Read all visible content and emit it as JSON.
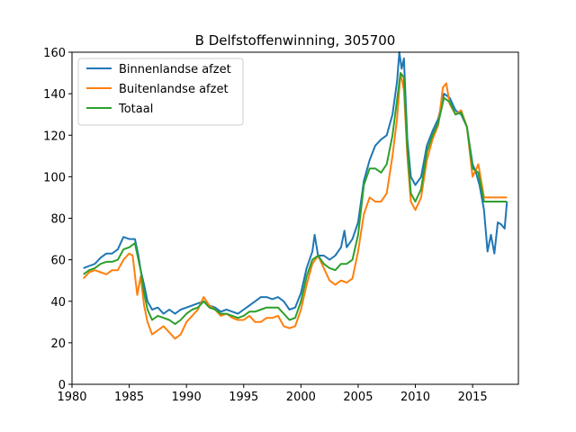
{
  "chart_data": {
    "type": "line",
    "title": "B Delfstoffenwinning, 305700",
    "xlabel": "",
    "ylabel": "",
    "xlim": [
      1980,
      2019
    ],
    "ylim": [
      0,
      160
    ],
    "xticks": [
      1980,
      1985,
      1990,
      1995,
      2000,
      2005,
      2010,
      2015
    ],
    "yticks": [
      0,
      20,
      40,
      60,
      80,
      100,
      120,
      140,
      160
    ],
    "grid": false,
    "legend_position": "top-left",
    "series": [
      {
        "name": "Binnenlandse afzet",
        "color": "#1f77b4",
        "points": [
          [
            1981.0,
            56
          ],
          [
            1981.5,
            57
          ],
          [
            1982.0,
            58
          ],
          [
            1982.5,
            61
          ],
          [
            1983.0,
            63
          ],
          [
            1983.5,
            63
          ],
          [
            1984.0,
            65
          ],
          [
            1984.5,
            71
          ],
          [
            1985.0,
            70
          ],
          [
            1985.5,
            70
          ],
          [
            1985.8,
            62
          ],
          [
            1986.0,
            55
          ],
          [
            1986.3,
            48
          ],
          [
            1986.6,
            40
          ],
          [
            1987.0,
            36
          ],
          [
            1987.5,
            37
          ],
          [
            1988.0,
            34
          ],
          [
            1988.5,
            36
          ],
          [
            1989.0,
            34
          ],
          [
            1989.5,
            36
          ],
          [
            1990.0,
            37
          ],
          [
            1990.5,
            38
          ],
          [
            1991.0,
            39
          ],
          [
            1991.5,
            40
          ],
          [
            1992.0,
            38
          ],
          [
            1992.5,
            37
          ],
          [
            1993.0,
            35
          ],
          [
            1993.5,
            36
          ],
          [
            1994.0,
            35
          ],
          [
            1994.5,
            34
          ],
          [
            1995.0,
            36
          ],
          [
            1995.5,
            38
          ],
          [
            1996.0,
            40
          ],
          [
            1996.5,
            42
          ],
          [
            1997.0,
            42
          ],
          [
            1997.5,
            41
          ],
          [
            1998.0,
            42
          ],
          [
            1998.5,
            40
          ],
          [
            1999.0,
            36
          ],
          [
            1999.5,
            37
          ],
          [
            2000.0,
            44
          ],
          [
            2000.5,
            56
          ],
          [
            2001.0,
            64
          ],
          [
            2001.2,
            72
          ],
          [
            2001.5,
            62
          ],
          [
            2002.0,
            62
          ],
          [
            2002.5,
            60
          ],
          [
            2003.0,
            62
          ],
          [
            2003.5,
            66
          ],
          [
            2003.8,
            74
          ],
          [
            2004.0,
            66
          ],
          [
            2004.5,
            70
          ],
          [
            2005.0,
            78
          ],
          [
            2005.5,
            98
          ],
          [
            2006.0,
            108
          ],
          [
            2006.5,
            115
          ],
          [
            2007.0,
            118
          ],
          [
            2007.5,
            120
          ],
          [
            2008.0,
            130
          ],
          [
            2008.4,
            146
          ],
          [
            2008.6,
            160
          ],
          [
            2008.8,
            152
          ],
          [
            2009.0,
            157
          ],
          [
            2009.3,
            118
          ],
          [
            2009.6,
            100
          ],
          [
            2010.0,
            96
          ],
          [
            2010.5,
            100
          ],
          [
            2011.0,
            115
          ],
          [
            2011.5,
            122
          ],
          [
            2012.0,
            128
          ],
          [
            2012.5,
            140
          ],
          [
            2013.0,
            138
          ],
          [
            2013.5,
            132
          ],
          [
            2014.0,
            130
          ],
          [
            2014.5,
            124
          ],
          [
            2015.0,
            106
          ],
          [
            2015.3,
            102
          ],
          [
            2015.6,
            96
          ],
          [
            2016.0,
            84
          ],
          [
            2016.3,
            64
          ],
          [
            2016.6,
            72
          ],
          [
            2016.9,
            63
          ],
          [
            2017.2,
            78
          ],
          [
            2017.5,
            77
          ],
          [
            2017.8,
            75
          ],
          [
            2018.0,
            88
          ]
        ]
      },
      {
        "name": "Buitenlandse afzet",
        "color": "#ff7f0e",
        "points": [
          [
            1981.0,
            51
          ],
          [
            1981.5,
            54
          ],
          [
            1982.0,
            55
          ],
          [
            1982.5,
            54
          ],
          [
            1983.0,
            53
          ],
          [
            1983.5,
            55
          ],
          [
            1984.0,
            55
          ],
          [
            1984.5,
            60
          ],
          [
            1985.0,
            63
          ],
          [
            1985.3,
            62
          ],
          [
            1985.7,
            43
          ],
          [
            1986.0,
            52
          ],
          [
            1986.3,
            38
          ],
          [
            1986.6,
            30
          ],
          [
            1987.0,
            24
          ],
          [
            1987.5,
            26
          ],
          [
            1988.0,
            28
          ],
          [
            1988.5,
            25
          ],
          [
            1989.0,
            22
          ],
          [
            1989.5,
            24
          ],
          [
            1990.0,
            30
          ],
          [
            1990.5,
            33
          ],
          [
            1991.0,
            36
          ],
          [
            1991.5,
            42
          ],
          [
            1992.0,
            38
          ],
          [
            1992.5,
            36
          ],
          [
            1993.0,
            33
          ],
          [
            1993.5,
            34
          ],
          [
            1994.0,
            32
          ],
          [
            1994.5,
            31
          ],
          [
            1995.0,
            31
          ],
          [
            1995.5,
            33
          ],
          [
            1996.0,
            30
          ],
          [
            1996.5,
            30
          ],
          [
            1997.0,
            32
          ],
          [
            1997.5,
            32
          ],
          [
            1998.0,
            33
          ],
          [
            1998.5,
            28
          ],
          [
            1999.0,
            27
          ],
          [
            1999.5,
            28
          ],
          [
            2000.0,
            36
          ],
          [
            2000.5,
            48
          ],
          [
            2001.0,
            58
          ],
          [
            2001.5,
            62
          ],
          [
            2002.0,
            56
          ],
          [
            2002.5,
            50
          ],
          [
            2003.0,
            48
          ],
          [
            2003.5,
            50
          ],
          [
            2004.0,
            49
          ],
          [
            2004.5,
            51
          ],
          [
            2005.0,
            64
          ],
          [
            2005.5,
            82
          ],
          [
            2006.0,
            90
          ],
          [
            2006.5,
            88
          ],
          [
            2007.0,
            88
          ],
          [
            2007.5,
            92
          ],
          [
            2008.0,
            110
          ],
          [
            2008.4,
            128
          ],
          [
            2008.7,
            150
          ],
          [
            2009.0,
            142
          ],
          [
            2009.3,
            110
          ],
          [
            2009.6,
            88
          ],
          [
            2010.0,
            84
          ],
          [
            2010.5,
            90
          ],
          [
            2011.0,
            108
          ],
          [
            2011.5,
            118
          ],
          [
            2012.0,
            125
          ],
          [
            2012.4,
            143
          ],
          [
            2012.7,
            145
          ],
          [
            2013.0,
            135
          ],
          [
            2013.5,
            130
          ],
          [
            2014.0,
            132
          ],
          [
            2014.5,
            124
          ],
          [
            2015.0,
            100
          ],
          [
            2015.5,
            106
          ],
          [
            2016.0,
            90
          ],
          [
            2016.5,
            90
          ],
          [
            2017.0,
            90
          ],
          [
            2017.5,
            90
          ],
          [
            2018.0,
            90
          ]
        ]
      },
      {
        "name": "Totaal",
        "color": "#2ca02c",
        "points": [
          [
            1981.0,
            53
          ],
          [
            1981.5,
            55
          ],
          [
            1982.0,
            56
          ],
          [
            1982.5,
            58
          ],
          [
            1983.0,
            59
          ],
          [
            1983.5,
            59
          ],
          [
            1984.0,
            60
          ],
          [
            1984.5,
            65
          ],
          [
            1985.0,
            66
          ],
          [
            1985.5,
            68
          ],
          [
            1985.8,
            60
          ],
          [
            1986.0,
            55
          ],
          [
            1986.3,
            44
          ],
          [
            1986.6,
            36
          ],
          [
            1987.0,
            31
          ],
          [
            1987.5,
            33
          ],
          [
            1988.0,
            32
          ],
          [
            1988.5,
            31
          ],
          [
            1989.0,
            29
          ],
          [
            1989.5,
            31
          ],
          [
            1990.0,
            34
          ],
          [
            1990.5,
            36
          ],
          [
            1991.0,
            37
          ],
          [
            1991.5,
            40
          ],
          [
            1992.0,
            37
          ],
          [
            1992.5,
            36
          ],
          [
            1993.0,
            34
          ],
          [
            1993.5,
            34
          ],
          [
            1994.0,
            33
          ],
          [
            1994.5,
            32
          ],
          [
            1995.0,
            33
          ],
          [
            1995.5,
            35
          ],
          [
            1996.0,
            35
          ],
          [
            1996.5,
            36
          ],
          [
            1997.0,
            37
          ],
          [
            1997.5,
            37
          ],
          [
            1998.0,
            37
          ],
          [
            1998.5,
            34
          ],
          [
            1999.0,
            31
          ],
          [
            1999.5,
            32
          ],
          [
            2000.0,
            40
          ],
          [
            2000.5,
            52
          ],
          [
            2001.0,
            60
          ],
          [
            2001.5,
            62
          ],
          [
            2002.0,
            58
          ],
          [
            2002.5,
            56
          ],
          [
            2003.0,
            55
          ],
          [
            2003.5,
            58
          ],
          [
            2004.0,
            58
          ],
          [
            2004.5,
            60
          ],
          [
            2005.0,
            72
          ],
          [
            2005.5,
            96
          ],
          [
            2006.0,
            104
          ],
          [
            2006.5,
            104
          ],
          [
            2007.0,
            102
          ],
          [
            2007.5,
            106
          ],
          [
            2008.0,
            120
          ],
          [
            2008.4,
            137
          ],
          [
            2008.7,
            150
          ],
          [
            2009.0,
            148
          ],
          [
            2009.3,
            114
          ],
          [
            2009.6,
            92
          ],
          [
            2010.0,
            88
          ],
          [
            2010.5,
            94
          ],
          [
            2011.0,
            112
          ],
          [
            2011.5,
            120
          ],
          [
            2012.0,
            126
          ],
          [
            2012.5,
            138
          ],
          [
            2013.0,
            136
          ],
          [
            2013.5,
            130
          ],
          [
            2014.0,
            131
          ],
          [
            2014.5,
            124
          ],
          [
            2015.0,
            104
          ],
          [
            2015.5,
            102
          ],
          [
            2016.0,
            88
          ],
          [
            2016.5,
            88
          ],
          [
            2017.0,
            88
          ],
          [
            2017.5,
            88
          ],
          [
            2018.0,
            88
          ]
        ]
      }
    ]
  }
}
